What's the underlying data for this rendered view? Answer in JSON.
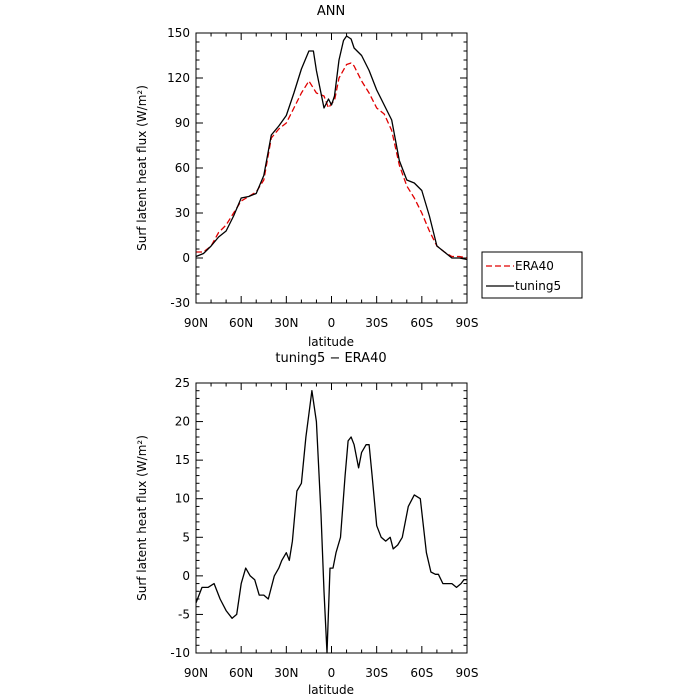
{
  "chart_data": [
    {
      "type": "line",
      "title": "ANN",
      "xlabel": "latitude",
      "ylabel": "Surf latent heat flux (W/m²)",
      "xlim": [
        90,
        -90
      ],
      "ylim": [
        -30,
        150
      ],
      "xticks": [
        {
          "value": 90,
          "label": "90N"
        },
        {
          "value": 60,
          "label": "60N"
        },
        {
          "value": 30,
          "label": "30N"
        },
        {
          "value": 0,
          "label": "0"
        },
        {
          "value": -30,
          "label": "30S"
        },
        {
          "value": -60,
          "label": "60S"
        },
        {
          "value": -90,
          "label": "90S"
        }
      ],
      "yticks": [
        -30,
        0,
        30,
        60,
        90,
        120,
        150
      ],
      "legend": {
        "position": "right",
        "entries": [
          "ERA40",
          "tuning5"
        ]
      },
      "series": [
        {
          "name": "ERA40",
          "color": "#e00000",
          "dash": "dashed",
          "x": [
            90,
            85,
            80,
            75,
            70,
            65,
            60,
            55,
            50,
            45,
            40,
            35,
            30,
            25,
            20,
            15,
            10,
            5,
            2,
            0,
            -2,
            -5,
            -10,
            -13,
            -15,
            -20,
            -25,
            -30,
            -35,
            -40,
            -45,
            -50,
            -55,
            -60,
            -65,
            -70,
            -75,
            -80,
            -85,
            -90
          ],
          "y": [
            4,
            4,
            8,
            17,
            22,
            30,
            38,
            41,
            44,
            52,
            80,
            86,
            90,
            100,
            110,
            118,
            110,
            108,
            100,
            103,
            105,
            120,
            129,
            130,
            128,
            118,
            110,
            100,
            96,
            85,
            62,
            48,
            40,
            30,
            18,
            8,
            4,
            1,
            1,
            0
          ]
        },
        {
          "name": "tuning5",
          "color": "#000000",
          "dash": "solid",
          "x": [
            90,
            85,
            80,
            75,
            70,
            65,
            60,
            55,
            50,
            45,
            40,
            35,
            30,
            25,
            20,
            15,
            12,
            10,
            5,
            2,
            0,
            -2,
            -5,
            -8,
            -10,
            -13,
            -15,
            -20,
            -25,
            -30,
            -35,
            -40,
            -45,
            -50,
            -55,
            -60,
            -65,
            -70,
            -75,
            -80,
            -85,
            -90
          ],
          "y": [
            1,
            3,
            8,
            14,
            18,
            28,
            40,
            41,
            43,
            55,
            82,
            88,
            95,
            110,
            126,
            138,
            138,
            125,
            100,
            106,
            102,
            108,
            132,
            145,
            148,
            146,
            140,
            135,
            125,
            112,
            102,
            92,
            65,
            52,
            50,
            45,
            28,
            8,
            4,
            0,
            0,
            -1
          ]
        }
      ]
    },
    {
      "type": "line",
      "title": "tuning5 − ERA40",
      "xlabel": "latitude",
      "ylabel": "Surf latent heat flux (W/m²)",
      "xlim": [
        90,
        -90
      ],
      "ylim": [
        -10,
        25
      ],
      "xticks": [
        {
          "value": 90,
          "label": "90N"
        },
        {
          "value": 60,
          "label": "60N"
        },
        {
          "value": 30,
          "label": "30N"
        },
        {
          "value": 0,
          "label": "0"
        },
        {
          "value": -30,
          "label": "30S"
        },
        {
          "value": -60,
          "label": "60S"
        },
        {
          "value": -90,
          "label": "90S"
        }
      ],
      "yticks": [
        -10,
        -5,
        0,
        5,
        10,
        15,
        20,
        25
      ],
      "series": [
        {
          "color": "#000000",
          "dash": "solid",
          "x": [
            90,
            86,
            82,
            78,
            74,
            70,
            66,
            63,
            60,
            57,
            54,
            51,
            48,
            45,
            42,
            38,
            35,
            33,
            30,
            28,
            26,
            23,
            20,
            17,
            15,
            13,
            10,
            7,
            5,
            3,
            1,
            -1,
            -3,
            -6,
            -9,
            -11,
            -13,
            -15,
            -18,
            -20,
            -23,
            -25,
            -27,
            -30,
            -33,
            -36,
            -39,
            -41,
            -44,
            -47,
            -51,
            -55,
            -59,
            -63,
            -66,
            -69,
            -71,
            -74,
            -77,
            -80,
            -83,
            -86,
            -88,
            -90
          ],
          "y": [
            -3.5,
            -1.5,
            -1.5,
            -1,
            -3,
            -4.5,
            -5.5,
            -5,
            -1,
            1,
            0,
            -0.5,
            -2.5,
            -2.5,
            -3,
            0,
            1,
            2,
            3,
            2,
            4.5,
            11,
            12,
            18,
            21,
            24,
            20,
            8,
            -2,
            -10,
            1,
            1,
            3,
            5,
            13,
            17.5,
            18,
            17,
            14,
            16,
            17,
            17,
            13,
            6.5,
            5,
            4.5,
            5,
            3.5,
            4,
            5,
            9,
            10.5,
            10,
            3,
            0.5,
            0.2,
            0.2,
            -1,
            -1,
            -1,
            -1.5,
            -1,
            -0.5,
            -0.5
          ]
        }
      ]
    }
  ]
}
